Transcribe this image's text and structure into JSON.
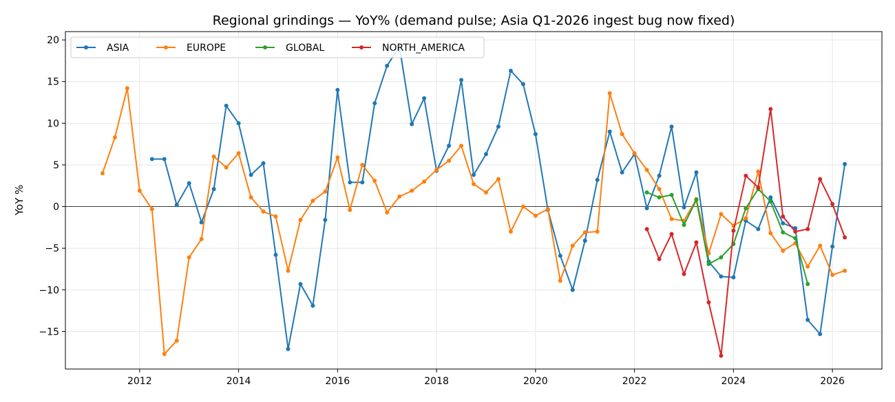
{
  "chart_data": {
    "type": "line",
    "title": "Regional grindings — YoY% (demand pulse; Asia Q1-2026 ingest bug now fixed)",
    "xlabel": "",
    "ylabel": "YoY %",
    "xlim": [
      2010.5,
      2027.0
    ],
    "ylim": [
      -19.5,
      21.0
    ],
    "x_ticks": [
      2012,
      2014,
      2016,
      2018,
      2020,
      2022,
      2024,
      2026
    ],
    "y_ticks": [
      -15,
      -10,
      -5,
      0,
      5,
      10,
      15,
      20
    ],
    "grid": true,
    "zero_line": true,
    "legend_position": "top-left",
    "series": [
      {
        "name": "ASIA",
        "color": "#1f77b4",
        "x": [
          2012.25,
          2012.5,
          2012.75,
          2013.0,
          2013.25,
          2013.5,
          2013.75,
          2014.0,
          2014.25,
          2014.5,
          2014.75,
          2015.0,
          2015.25,
          2015.5,
          2015.75,
          2016.0,
          2016.25,
          2016.5,
          2016.75,
          2017.0,
          2017.25,
          2017.5,
          2017.75,
          2018.0,
          2018.25,
          2018.5,
          2018.75,
          2019.0,
          2019.25,
          2019.5,
          2019.75,
          2020.0,
          2020.25,
          2020.5,
          2020.75,
          2021.0,
          2021.25,
          2021.5,
          2021.75,
          2022.0,
          2022.25,
          2022.5,
          2022.75,
          2023.0,
          2023.25,
          2023.5,
          2023.75,
          2024.0,
          2024.25,
          2024.5,
          2024.75,
          2025.0,
          2025.25,
          2025.5,
          2025.75,
          2026.0,
          2026.25
        ],
        "values": [
          5.7,
          5.7,
          0.2,
          2.8,
          -1.9,
          2.1,
          12.1,
          10.0,
          3.8,
          5.2,
          -5.8,
          -17.1,
          -9.3,
          -11.9,
          -1.6,
          14.0,
          2.9,
          2.9,
          12.4,
          16.9,
          19.2,
          9.9,
          13.0,
          4.3,
          7.3,
          15.2,
          3.8,
          6.3,
          9.6,
          16.3,
          14.7,
          8.7,
          -0.4,
          -5.9,
          -10.0,
          -4.1,
          3.2,
          9.0,
          4.1,
          6.3,
          -0.2,
          3.7,
          9.6,
          -0.1,
          4.1,
          -6.6,
          -8.4,
          -8.5,
          -1.7,
          -2.7,
          1.1,
          -2.0,
          -2.6,
          -13.6,
          -15.3,
          -4.8,
          5.1
        ]
      },
      {
        "name": "EUROPE",
        "color": "#ff7f0e",
        "x": [
          2011.25,
          2011.5,
          2011.75,
          2012.0,
          2012.25,
          2012.5,
          2012.75,
          2013.0,
          2013.25,
          2013.5,
          2013.75,
          2014.0,
          2014.25,
          2014.5,
          2014.75,
          2015.0,
          2015.25,
          2015.5,
          2015.75,
          2016.0,
          2016.25,
          2016.5,
          2016.75,
          2017.0,
          2017.25,
          2017.5,
          2017.75,
          2018.0,
          2018.25,
          2018.5,
          2018.75,
          2019.0,
          2019.25,
          2019.5,
          2019.75,
          2020.0,
          2020.25,
          2020.5,
          2020.75,
          2021.0,
          2021.25,
          2021.5,
          2021.75,
          2022.0,
          2022.25,
          2022.5,
          2022.75,
          2023.0,
          2023.25,
          2023.5,
          2023.75,
          2024.0,
          2024.25,
          2024.5,
          2024.75,
          2025.0,
          2025.25,
          2025.5,
          2025.75,
          2026.0,
          2026.25
        ],
        "values": [
          4.0,
          8.3,
          14.2,
          1.9,
          -0.3,
          -17.7,
          -16.1,
          -6.1,
          -3.9,
          6.0,
          4.7,
          6.4,
          1.1,
          -0.6,
          -1.2,
          -7.7,
          -1.6,
          0.7,
          1.8,
          5.9,
          -0.4,
          5.0,
          3.1,
          -0.7,
          1.2,
          1.9,
          3.0,
          4.4,
          5.5,
          7.3,
          2.7,
          1.7,
          3.3,
          -3.0,
          0.0,
          -1.1,
          -0.3,
          -8.9,
          -4.7,
          -3.1,
          -3.0,
          13.6,
          8.7,
          6.4,
          4.4,
          2.1,
          -1.5,
          -1.7,
          0.9,
          -5.6,
          -0.9,
          -2.3,
          -1.4,
          4.2,
          -3.2,
          -5.3,
          -4.4,
          -7.2,
          -4.7,
          -8.2,
          -7.7
        ]
      },
      {
        "name": "GLOBAL",
        "color": "#2ca02c",
        "x": [
          2022.25,
          2022.5,
          2022.75,
          2023.0,
          2023.25,
          2023.5,
          2023.75,
          2024.0,
          2024.25,
          2024.5,
          2024.75,
          2025.0,
          2025.25,
          2025.5
        ],
        "values": [
          1.7,
          1.1,
          1.4,
          -2.2,
          0.8,
          -6.9,
          -6.1,
          -4.5,
          -0.2,
          2.1,
          0.6,
          -3.1,
          -3.8,
          -9.3
        ]
      },
      {
        "name": "NORTH_AMERICA",
        "color": "#d62728",
        "x": [
          2022.25,
          2022.5,
          2022.75,
          2023.0,
          2023.25,
          2023.5,
          2023.75,
          2024.0,
          2024.25,
          2024.5,
          2024.75,
          2025.0,
          2025.25,
          2025.5,
          2025.75,
          2026.0,
          2026.25
        ],
        "values": [
          -2.7,
          -6.3,
          -3.3,
          -8.1,
          -4.3,
          -11.5,
          -17.9,
          -2.9,
          3.7,
          2.3,
          11.7,
          -1.2,
          -3.0,
          -2.7,
          3.3,
          0.3,
          -3.7
        ]
      }
    ]
  }
}
